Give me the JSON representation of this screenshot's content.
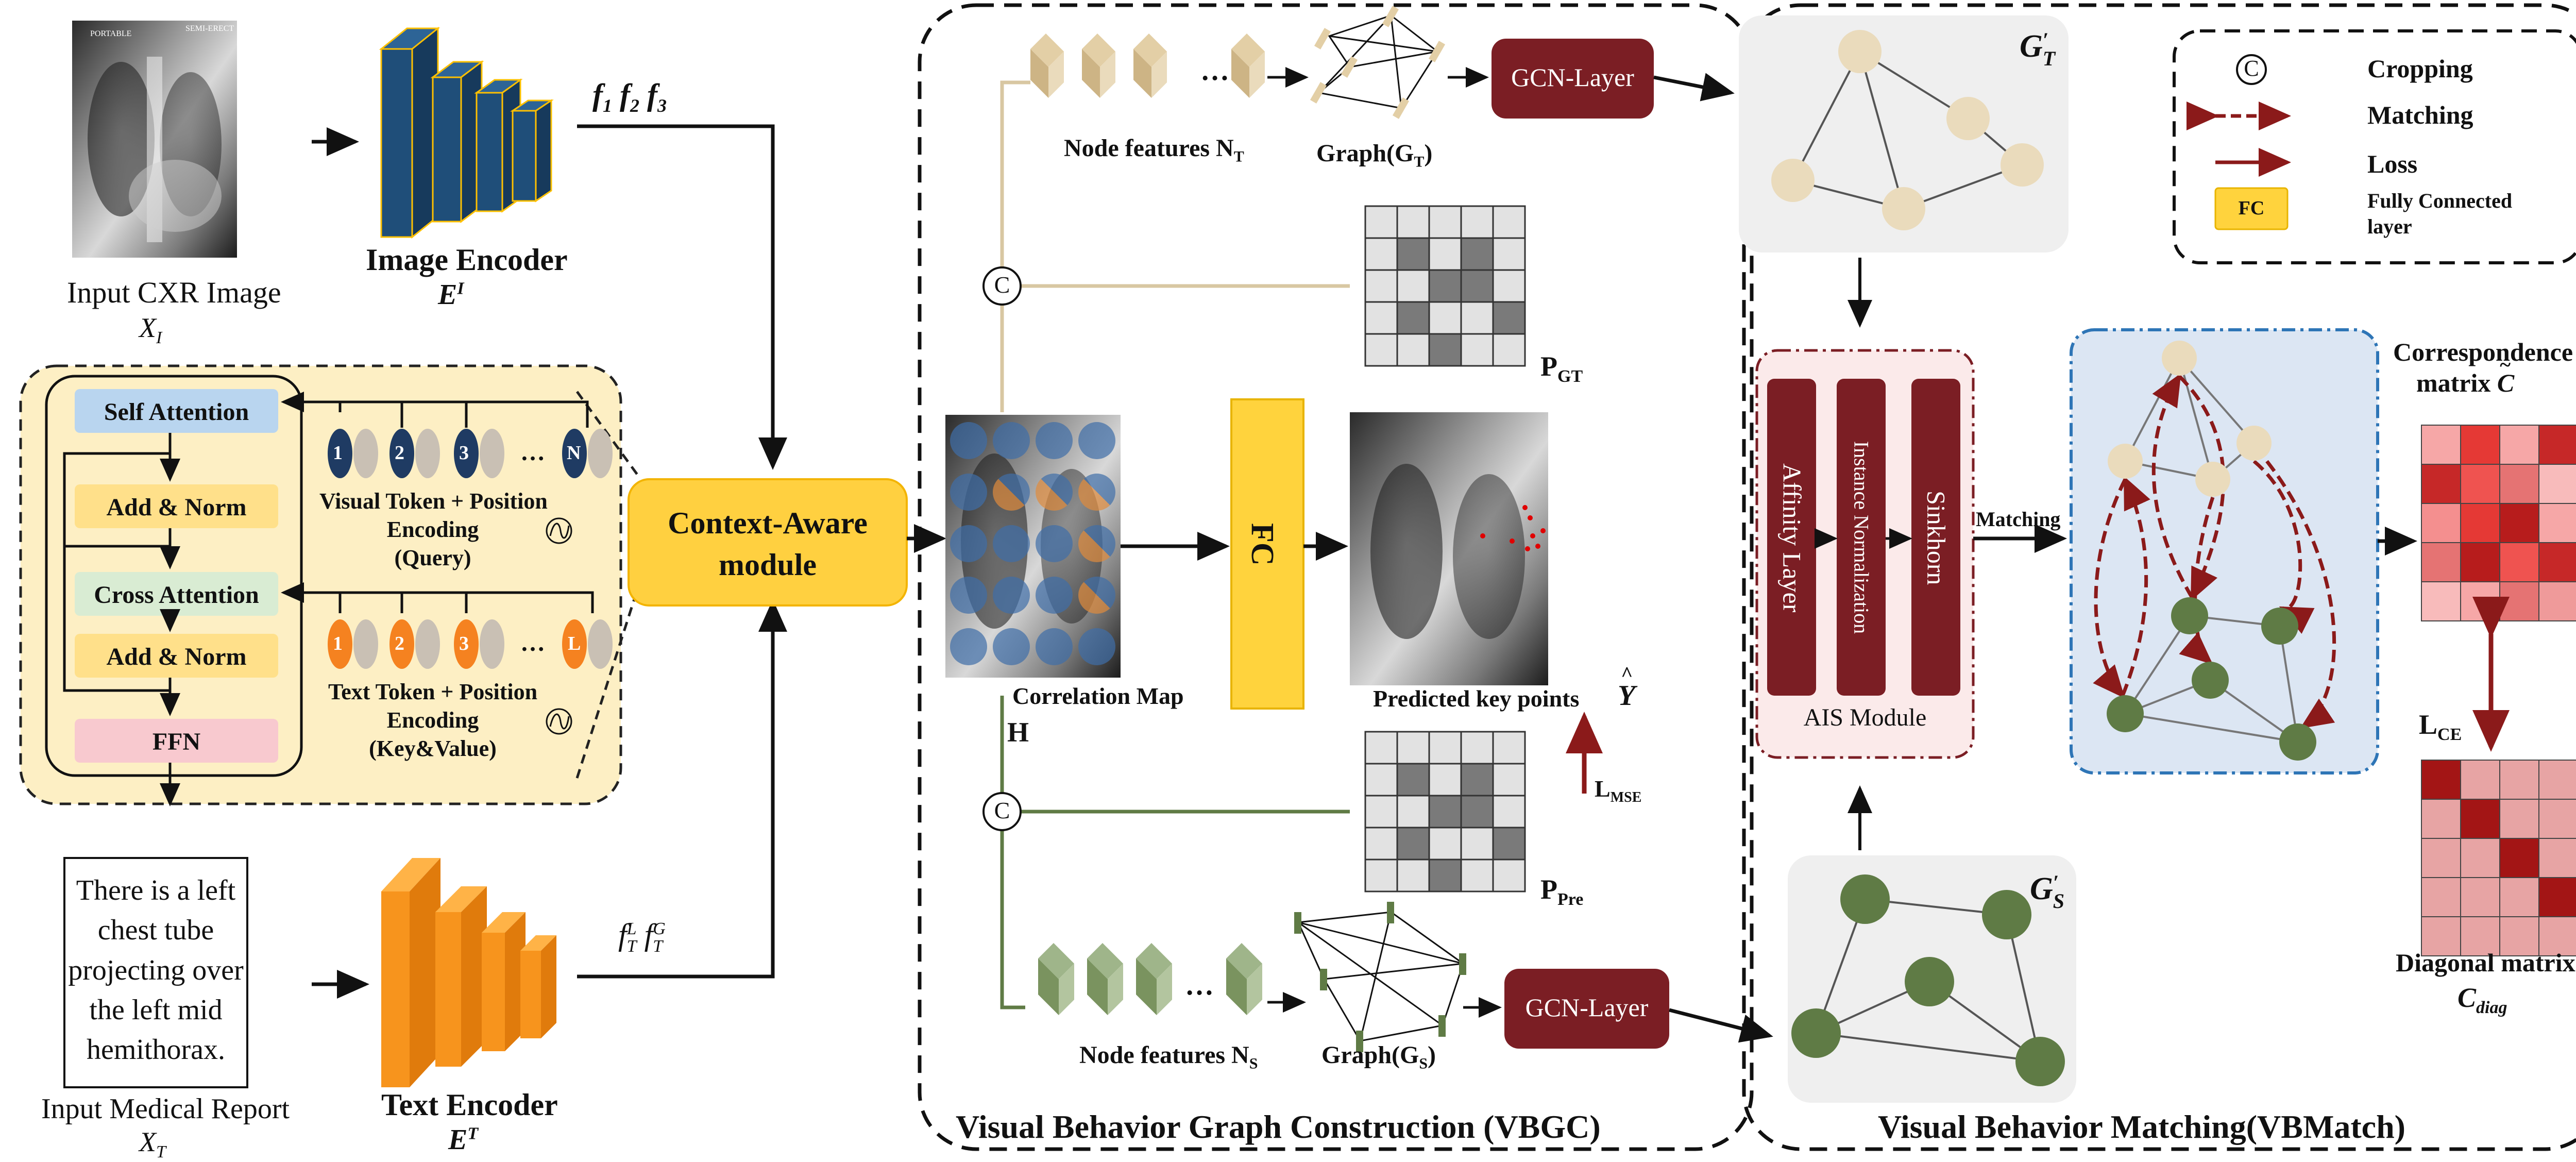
{
  "colors": {
    "image_encoder": "#1f4e79",
    "text_encoder": "#f7941d",
    "gcn": "#7b1e24",
    "fc": "#ffd33d",
    "context_module": "#ffd040",
    "nt_node": "#eadbbc",
    "ns_node": "#5f7b45",
    "ais_block": "#7b1e24",
    "loss_arrow": "#8b1a1a",
    "matching_panel": "#dce6f3",
    "transformer_panel": "#fdefc4"
  },
  "input": {
    "cxr_label": "Input CXR Image",
    "cxr_var": "X",
    "cxr_var_sub": "I",
    "cxr_tags": [
      "PORTABLE",
      "SEMI-ERECT"
    ],
    "report_text": [
      "There is a left",
      "chest tube",
      "projecting over",
      "the left mid",
      "hemithorax."
    ],
    "report_label": "Input Medical Report",
    "report_var": "X",
    "report_var_sub": "T"
  },
  "image_encoder": {
    "label": "Image Encoder",
    "symbol": "E",
    "symbol_sup": "I",
    "features": [
      "f",
      "1",
      "f",
      "2",
      "f",
      "3"
    ]
  },
  "text_encoder": {
    "label": "Text Encoder",
    "symbol": "E",
    "symbol_sup": "T",
    "feat_sup_1": "L",
    "feat_sup_2": "G",
    "feat_base": "f",
    "feat_sub": "T"
  },
  "transformer": {
    "blocks": [
      "Self Attention",
      "Add & Norm",
      "Cross Attention",
      "Add & Norm",
      "FFN"
    ],
    "visual_tokens": [
      "1",
      "2",
      "3",
      "…",
      "N"
    ],
    "visual_caption": [
      "Visual Token + Position",
      "Encoding",
      "(Query)"
    ],
    "text_tokens": [
      "1",
      "2",
      "3",
      "…",
      "L"
    ],
    "text_caption": [
      "Text Token + Position",
      "Encoding",
      "(Key&Value)"
    ]
  },
  "context_module": {
    "line1": "Context-Aware",
    "line2": "module"
  },
  "vbgc": {
    "title": "Visual Behavior Graph Construction (VBGC)",
    "node_features_t": "Node features N",
    "node_features_t_sub": "T",
    "graph_t": "Graph(G",
    "graph_t_sub": "T",
    "node_features_s": "Node features N",
    "node_features_s_sub": "S",
    "graph_s": "Graph(G",
    "graph_s_sub": "S",
    "gcn_label": "GCN-Layer",
    "crop_symbol": "C",
    "pgt": "P",
    "pgt_sub": "GT",
    "ppre": "P",
    "ppre_sub": "Pre",
    "correlation_label": "Correlation Map",
    "correlation_symbol": "H",
    "fc_label": "FC",
    "predicted_label": "Predicted key points",
    "predicted_symbol": "Y",
    "lmse": "L",
    "lmse_sub": "MSE",
    "ellipsis": "…",
    "grid_cells_gt": [
      [
        0,
        0,
        0,
        0,
        0
      ],
      [
        0,
        1,
        0,
        1,
        0
      ],
      [
        0,
        0,
        1,
        1,
        0
      ],
      [
        0,
        1,
        0,
        0,
        1
      ],
      [
        0,
        0,
        1,
        0,
        0
      ]
    ],
    "grid_cells_pre": [
      [
        0,
        0,
        0,
        0,
        0
      ],
      [
        0,
        1,
        0,
        1,
        0
      ],
      [
        0,
        0,
        1,
        1,
        0
      ],
      [
        0,
        1,
        0,
        0,
        1
      ],
      [
        0,
        0,
        1,
        0,
        0
      ]
    ]
  },
  "vbmatch": {
    "title": "Visual Behavior Matching(VBMatch)",
    "gt_graph": "G",
    "gt_graph_sup": "′",
    "gt_graph_sub": "T",
    "gs_graph": "G",
    "gs_graph_sup": "′",
    "gs_graph_sub": "S",
    "ais_blocks": [
      "Affinity Layer",
      "Instance Normalization",
      "Sinkhorn"
    ],
    "ais_label": "AIS Module",
    "matching_label": "Matching",
    "correspondence_label": "Correspondence",
    "correspondence_label2": "matrix",
    "correspondence_symbol": "C",
    "lce": "L",
    "lce_sub": "CE",
    "diagonal_label": "Diagonal matrix",
    "diagonal_symbol": "C",
    "diagonal_sub": "diag",
    "corr_matrix": [
      [
        "#f6a7a7",
        "#e53935",
        "#f6a7a7",
        "#c62828",
        "#ef9a9a"
      ],
      [
        "#c62828",
        "#ef5350",
        "#e57373",
        "#f8bbbb",
        "#c62828"
      ],
      [
        "#f48f8f",
        "#e53935",
        "#b71c1c",
        "#f6a7a7",
        "#e57373"
      ],
      [
        "#e57373",
        "#b71c1c",
        "#ef5350",
        "#c62828",
        "#f8bbbb"
      ],
      [
        "#f8bbbb",
        "#f6a7a7",
        "#e57373",
        "#ef9a9a",
        "#d32f2f"
      ]
    ]
  },
  "legend": {
    "items": [
      "Cropping",
      "Matching",
      "Loss"
    ],
    "fc_tag": "FC",
    "fc_desc": [
      "Fully Connected",
      "layer"
    ],
    "crop_symbol": "C"
  }
}
